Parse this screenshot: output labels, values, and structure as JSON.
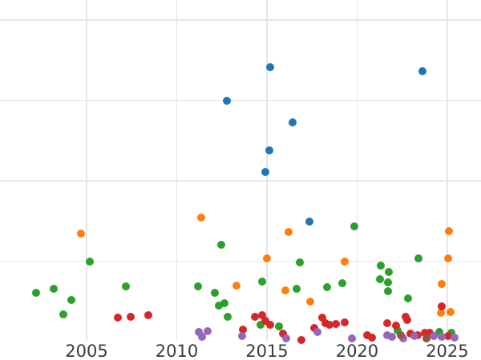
{
  "chart_data": {
    "type": "scatter",
    "title": "",
    "xlabel": "",
    "ylabel": "",
    "grid": true,
    "legend": "none",
    "x_ticks": [
      {
        "label": "2005",
        "year": 2005
      },
      {
        "label": "2010",
        "year": 2010
      },
      {
        "label": "2015",
        "year": 2015
      },
      {
        "label": "2020",
        "year": 2020
      },
      {
        "label": "2025",
        "year": 2025
      }
    ],
    "y_gridline_values": [
      1,
      2,
      3,
      4
    ],
    "xlim": [
      2000.2,
      2026.87
    ],
    "ylim": [
      0.01,
      4.25
    ],
    "marker_diameter_px": 10,
    "series": [
      {
        "name": "series-blue",
        "color": "#1f77b4",
        "points": [
          [
            2015.16,
            3.41
          ],
          [
            2023.62,
            3.36
          ],
          [
            2012.79,
            3.0
          ],
          [
            2016.44,
            2.73
          ],
          [
            2015.15,
            2.38
          ],
          [
            2014.91,
            2.11
          ],
          [
            2017.36,
            1.49
          ]
        ]
      },
      {
        "name": "series-orange",
        "color": "#ff7f0e",
        "points": [
          [
            2004.69,
            1.34
          ],
          [
            2011.36,
            1.54
          ],
          [
            2016.19,
            1.36
          ],
          [
            2025.1,
            1.37
          ],
          [
            2014.99,
            1.04
          ],
          [
            2019.31,
            1.0
          ],
          [
            2025.03,
            1.04
          ],
          [
            2013.3,
            0.7
          ],
          [
            2016.01,
            0.64
          ],
          [
            2024.69,
            0.72
          ],
          [
            2017.4,
            0.5
          ],
          [
            2024.63,
            0.36
          ],
          [
            2025.19,
            0.37
          ]
        ]
      },
      {
        "name": "series-green",
        "color": "#2ca02c",
        "points": [
          [
            2002.19,
            0.61
          ],
          [
            2003.18,
            0.66
          ],
          [
            2004.16,
            0.52
          ],
          [
            2003.71,
            0.34
          ],
          [
            2005.19,
            1.0
          ],
          [
            2007.18,
            0.69
          ],
          [
            2011.16,
            0.69
          ],
          [
            2012.12,
            0.61
          ],
          [
            2012.45,
            1.2
          ],
          [
            2012.32,
            0.45
          ],
          [
            2012.66,
            0.48
          ],
          [
            2012.84,
            0.31
          ],
          [
            2014.73,
            0.75
          ],
          [
            2016.82,
            0.99
          ],
          [
            2016.66,
            0.66
          ],
          [
            2018.33,
            0.68
          ],
          [
            2019.16,
            0.73
          ],
          [
            2019.83,
            1.43
          ],
          [
            2021.3,
            0.95
          ],
          [
            2021.74,
            0.87
          ],
          [
            2021.27,
            0.78
          ],
          [
            2021.71,
            0.74
          ],
          [
            2021.7,
            0.63
          ],
          [
            2023.39,
            1.04
          ],
          [
            2022.84,
            0.54
          ],
          [
            2014.66,
            0.21
          ],
          [
            2015.65,
            0.19
          ],
          [
            2022.26,
            0.14
          ],
          [
            2024.57,
            0.12
          ],
          [
            2025.24,
            0.11
          ]
        ]
      },
      {
        "name": "series-red",
        "color": "#d62728",
        "points": [
          [
            2006.72,
            0.3
          ],
          [
            2007.43,
            0.31
          ],
          [
            2008.44,
            0.33
          ],
          [
            2013.68,
            0.15
          ],
          [
            2014.33,
            0.31
          ],
          [
            2014.75,
            0.33
          ],
          [
            2014.9,
            0.26
          ],
          [
            2015.16,
            0.21
          ],
          [
            2015.88,
            0.1
          ],
          [
            2016.91,
            0.02
          ],
          [
            2017.64,
            0.17
          ],
          [
            2018.09,
            0.3
          ],
          [
            2018.26,
            0.23
          ],
          [
            2018.46,
            0.21
          ],
          [
            2018.84,
            0.22
          ],
          [
            2019.3,
            0.24
          ],
          [
            2020.56,
            0.08
          ],
          [
            2020.81,
            0.05
          ],
          [
            2021.69,
            0.23
          ],
          [
            2022.14,
            0.2
          ],
          [
            2022.7,
            0.31
          ],
          [
            2022.8,
            0.27
          ],
          [
            2022.98,
            0.1
          ],
          [
            2023.38,
            0.08
          ],
          [
            2023.76,
            0.11
          ],
          [
            2024.02,
            0.11
          ],
          [
            2024.69,
            0.44
          ],
          [
            2025.06,
            0.07
          ]
        ]
      },
      {
        "name": "series-purple",
        "color": "#9467bd",
        "points": [
          [
            2011.24,
            0.12
          ],
          [
            2011.41,
            0.06
          ],
          [
            2011.71,
            0.13
          ],
          [
            2013.61,
            0.07
          ],
          [
            2016.09,
            0.04
          ],
          [
            2017.8,
            0.12
          ],
          [
            2019.71,
            0.04
          ],
          [
            2021.67,
            0.08
          ],
          [
            2021.95,
            0.06
          ],
          [
            2022.54,
            0.04
          ],
          [
            2023.16,
            0.07
          ],
          [
            2024.23,
            0.07
          ],
          [
            2024.67,
            0.06
          ],
          [
            2025.4,
            0.05
          ]
        ]
      },
      {
        "name": "series-brown",
        "color": "#8c564b",
        "points": [
          [
            2022.44,
            0.08
          ],
          [
            2023.86,
            0.04
          ]
        ]
      }
    ]
  },
  "styles": {
    "background_color": "#ffffff",
    "grid_color": "#e6e6e6",
    "tick_label_color": "#3b3b3b"
  }
}
